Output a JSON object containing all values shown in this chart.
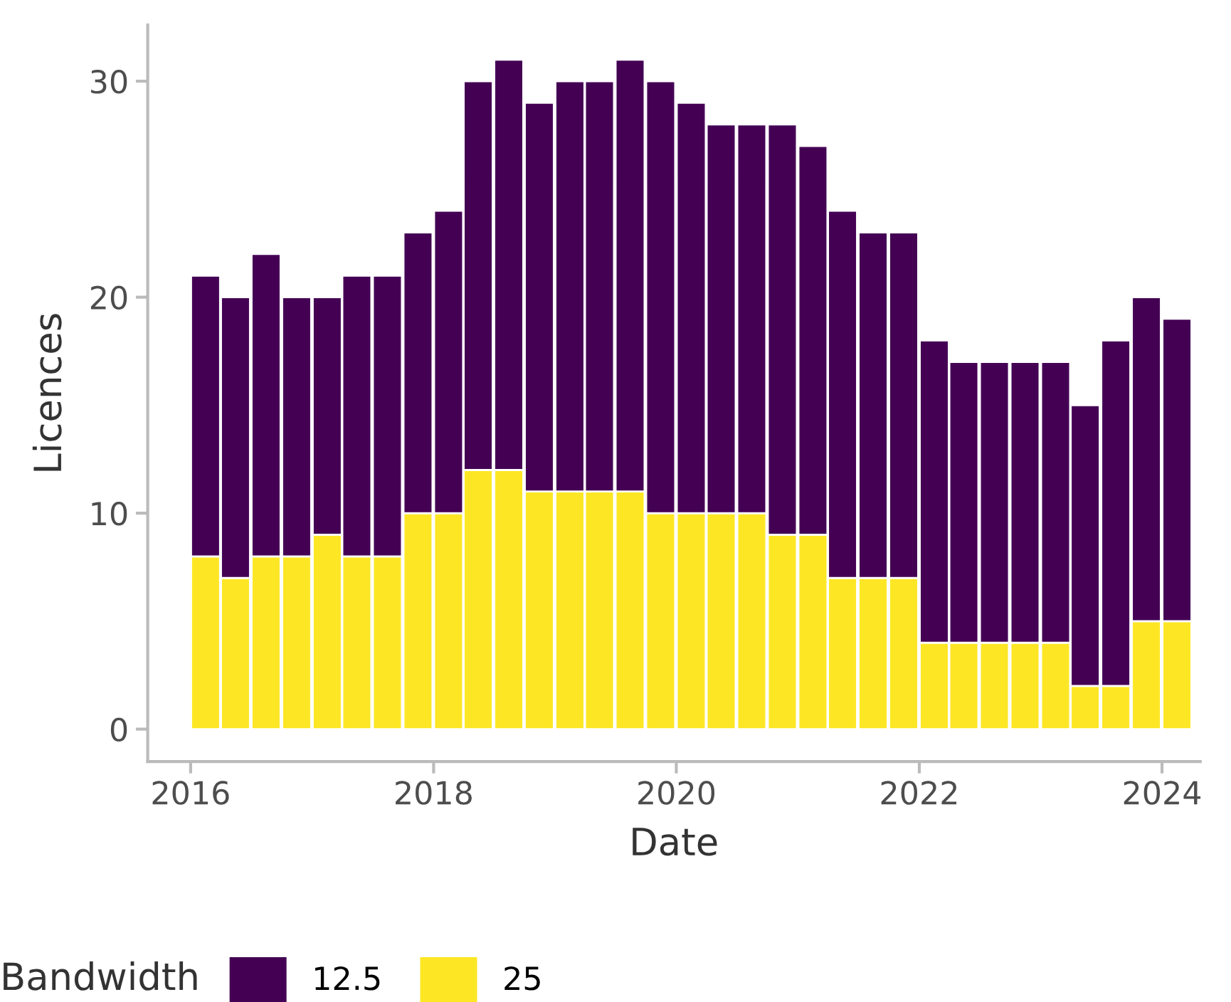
{
  "chart_data": {
    "type": "bar",
    "stacked": true,
    "xlabel": "Date",
    "ylabel": "Licences",
    "legend_title": "Bandwidth",
    "legend": "bottom",
    "grid": false,
    "x": [
      "2016-02-15",
      "2016-05-15",
      "2016-08-15",
      "2016-11-15",
      "2017-02-15",
      "2017-05-15",
      "2017-08-15",
      "2017-11-15",
      "2018-02-15",
      "2018-05-15",
      "2018-08-15",
      "2018-11-15",
      "2019-02-15",
      "2019-05-15",
      "2019-08-15",
      "2019-11-15",
      "2020-02-15",
      "2020-05-15",
      "2020-08-15",
      "2020-11-15",
      "2021-02-15",
      "2021-05-15",
      "2021-08-15",
      "2021-11-15",
      "2022-02-15",
      "2022-05-15",
      "2022-08-15",
      "2022-11-15",
      "2023-02-15",
      "2023-05-15",
      "2023-08-15",
      "2023-11-15",
      "2024-02-15"
    ],
    "series": [
      {
        "name": "25",
        "color": "#fde725",
        "values": [
          8,
          7,
          8,
          8,
          9,
          8,
          8,
          10,
          10,
          12,
          12,
          11,
          11,
          11,
          11,
          10,
          10,
          10,
          10,
          9,
          9,
          7,
          7,
          7,
          4,
          4,
          4,
          4,
          4,
          2,
          2,
          5,
          5
        ]
      },
      {
        "name": "12.5",
        "color": "#440154",
        "values": [
          13,
          13,
          14,
          12,
          11,
          13,
          13,
          13,
          14,
          18,
          19,
          18,
          19,
          19,
          20,
          20,
          19,
          18,
          18,
          19,
          18,
          17,
          16,
          16,
          14,
          13,
          13,
          13,
          13,
          13,
          16,
          15,
          14
        ]
      }
    ],
    "xlim": [
      "2015-08-25",
      "2024-04-25"
    ],
    "xticks": [
      {
        "value": "2016-01-01",
        "label": "2016"
      },
      {
        "value": "2018-01-01",
        "label": "2018"
      },
      {
        "value": "2020-01-01",
        "label": "2020"
      },
      {
        "value": "2022-01-01",
        "label": "2022"
      },
      {
        "value": "2024-01-01",
        "label": "2024"
      }
    ],
    "ylim": [
      -1.5,
      32.6
    ],
    "yticks": [
      0,
      10,
      20,
      30
    ]
  }
}
